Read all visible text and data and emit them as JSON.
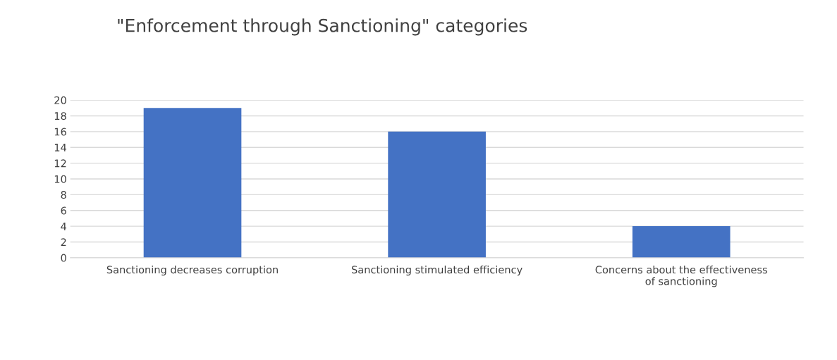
{
  "chart_data": {
    "type": "bar",
    "title": "\"Enforcement through Sanctioning\" categories",
    "categories": [
      "Sanctioning decreases corruption",
      "Sanctioning stimulated efficiency",
      "Concerns about the effectiveness of sanctioning"
    ],
    "values": [
      19,
      16,
      4
    ],
    "color": "#4472c4",
    "ylim": [
      0,
      20
    ],
    "yticks": [
      0,
      2,
      4,
      6,
      8,
      10,
      12,
      14,
      16,
      18,
      20
    ],
    "grid": "y",
    "legend": false
  }
}
